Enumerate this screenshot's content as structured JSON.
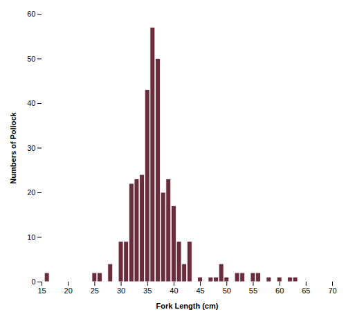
{
  "chart_data": {
    "type": "bar",
    "x": [
      16,
      17,
      18,
      19,
      20,
      21,
      22,
      23,
      24,
      25,
      26,
      27,
      28,
      29,
      30,
      31,
      32,
      33,
      34,
      35,
      36,
      37,
      38,
      39,
      40,
      41,
      42,
      43,
      44,
      45,
      46,
      47,
      48,
      49,
      50,
      51,
      52,
      53,
      54,
      55,
      56,
      57,
      58,
      59,
      60,
      61,
      62,
      63
    ],
    "values": [
      2,
      0,
      0,
      0,
      0,
      0,
      0,
      0,
      0,
      2,
      2,
      0,
      4,
      0,
      9,
      9,
      22,
      23,
      24,
      43,
      57,
      50,
      20,
      23,
      17,
      9,
      4,
      9,
      0,
      1,
      0,
      1,
      1,
      4,
      1,
      0,
      2,
      2,
      0,
      2,
      2,
      0,
      1,
      0,
      1,
      0,
      1,
      1
    ],
    "color": "#6b2d3e",
    "xlabel": "Fork Length (cm)",
    "ylabel": "Numbers of Pollock",
    "xlim": [
      15,
      70
    ],
    "ylim": [
      0,
      60
    ],
    "xticks": [
      15,
      20,
      25,
      30,
      35,
      40,
      45,
      50,
      55,
      60,
      65,
      70
    ],
    "yticks": [
      0,
      10,
      20,
      30,
      40,
      50,
      60
    ],
    "grid": false
  }
}
